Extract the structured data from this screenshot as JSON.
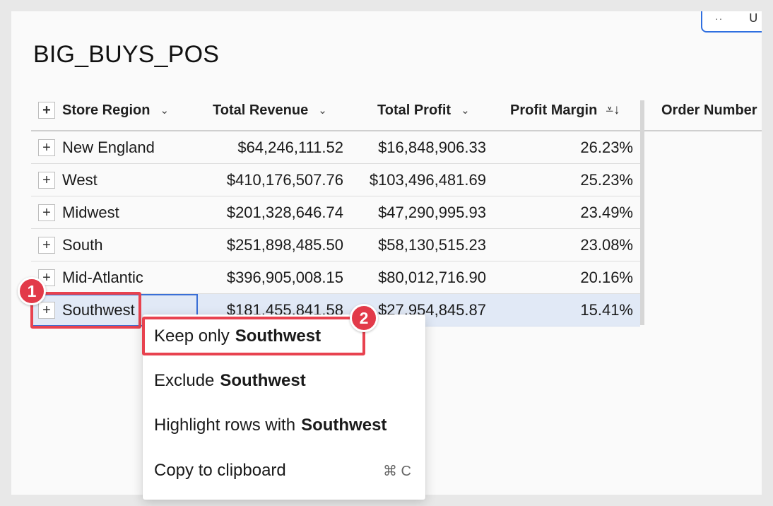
{
  "toolbar": {
    "dots": "··",
    "glyph": "ᑌ"
  },
  "title": "BIG_BUYS_POS",
  "columns": {
    "region": "Store Region",
    "revenue": "Total Revenue",
    "profit": "Total Profit",
    "margin": "Profit Margin",
    "order": "Order Number"
  },
  "icons": {
    "plus": "+",
    "chevron": "⌄",
    "sort": "⩡↓"
  },
  "rows": [
    {
      "region": "New England",
      "revenue": "$64,246,111.52",
      "profit": "$16,848,906.33",
      "margin": "26.23%"
    },
    {
      "region": "West",
      "revenue": "$410,176,507.76",
      "profit": "$103,496,481.69",
      "margin": "25.23%"
    },
    {
      "region": "Midwest",
      "revenue": "$201,328,646.74",
      "profit": "$47,290,995.93",
      "margin": "23.49%"
    },
    {
      "region": "South",
      "revenue": "$251,898,485.50",
      "profit": "$58,130,515.23",
      "margin": "23.08%"
    },
    {
      "region": "Mid-Atlantic",
      "revenue": "$396,905,008.15",
      "profit": "$80,012,716.90",
      "margin": "20.16%"
    },
    {
      "region": "Southwest",
      "revenue": "$181,455,841.58",
      "profit": "$27,954,845.87",
      "margin": "15.41%"
    }
  ],
  "menu": {
    "keep_prefix": "Keep only",
    "exclude_prefix": "Exclude",
    "highlight_prefix": "Highlight rows with",
    "value": "Southwest",
    "copy": "Copy to clipboard",
    "copy_shortcut": "⌘ C"
  },
  "annotations": {
    "step1": "1",
    "step2": "2"
  },
  "colors": {
    "annotation": "#e8424f",
    "selection": "#3a6fd6",
    "selected_row_bg": "#e1e9f6"
  }
}
